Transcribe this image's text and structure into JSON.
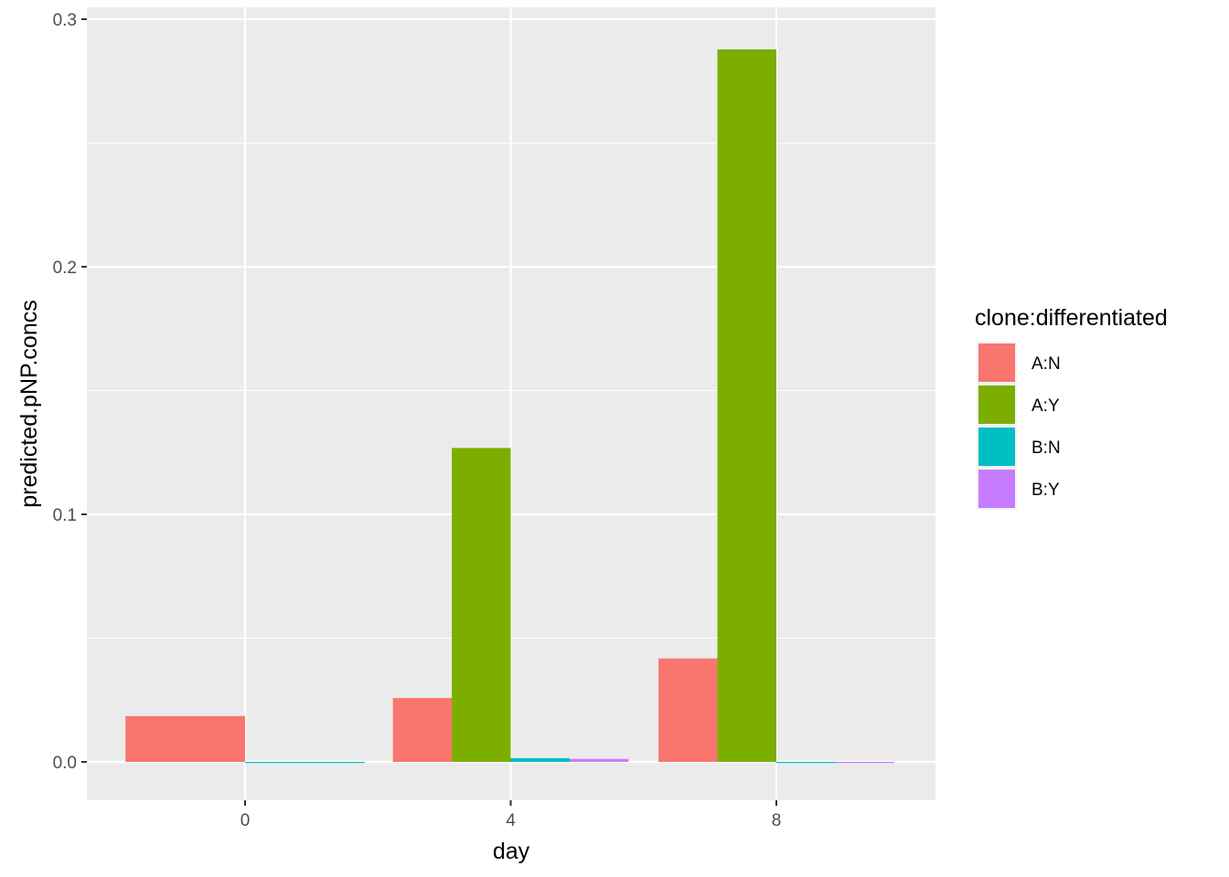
{
  "chart_data": {
    "type": "bar",
    "xlabel": "day",
    "ylabel": "predicted.pNP.concs",
    "categories": [
      "0",
      "4",
      "8"
    ],
    "ylim": [
      -0.015,
      0.301
    ],
    "yticks": [
      0.0,
      0.1,
      0.2,
      0.3
    ],
    "ytick_labels": [
      "0.0",
      "0.1",
      "0.2",
      "0.3"
    ],
    "grid": true,
    "legend": {
      "title": "clone:differentiated",
      "position": "right"
    },
    "series": [
      {
        "name": "A:N",
        "color": "#F8766D",
        "values": [
          0.0185,
          0.0258,
          0.0418
        ]
      },
      {
        "name": "A:Y",
        "color": "#7CAE00",
        "values": [
          null,
          0.1268,
          0.2878
        ]
      },
      {
        "name": "B:N",
        "color": "#00BFC4",
        "values": [
          -0.0004,
          0.0015,
          -0.0004
        ]
      },
      {
        "name": "B:Y",
        "color": "#C77CFF",
        "values": [
          null,
          0.0012,
          -0.0004
        ]
      }
    ]
  }
}
